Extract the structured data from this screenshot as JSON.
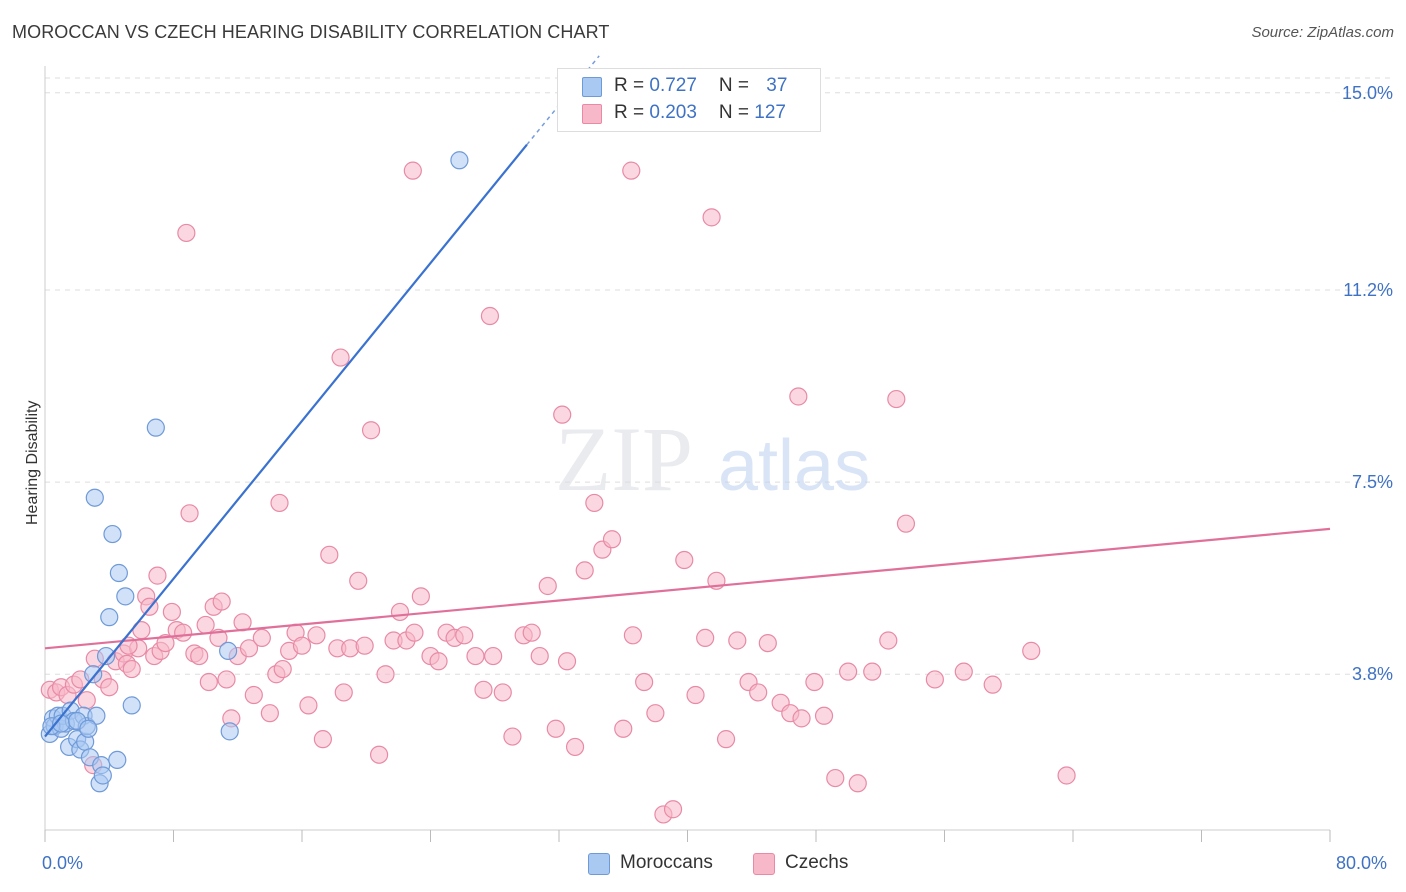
{
  "title": "MOROCCAN VS CZECH HEARING DISABILITY CORRELATION CHART",
  "source": "Source: ZipAtlas.com",
  "watermark": {
    "zip": "ZIP",
    "atlas": "atlas"
  },
  "legend_top": {
    "rows": [
      {
        "r_label": "R = ",
        "r_value": "0.727",
        "n_label": "N = ",
        "n_value": "37",
        "color": "#a9c8f2",
        "border": "#6f9ad8"
      },
      {
        "r_label": "R = ",
        "r_value": "0.203",
        "n_label": "N = ",
        "n_value": "127",
        "color": "#f7b8c9",
        "border": "#e88aa6"
      }
    ]
  },
  "legend_bottom": [
    {
      "label": "Moroccans",
      "color": "#a9c8f2",
      "border": "#6f9ad8"
    },
    {
      "label": "Czechs",
      "color": "#f7b8c9",
      "border": "#e88aa6"
    }
  ],
  "colors": {
    "blue_line": "#3a72d0",
    "pink_line": "#e0709a",
    "tick_label": "#3f72c4",
    "grid": "#dddddd"
  },
  "chart_data": {
    "type": "scatter",
    "title": "MOROCCAN VS CZECH HEARING DISABILITY CORRELATION CHART",
    "xlabel": "",
    "ylabel": "Hearing Disability",
    "xlim": [
      0,
      80
    ],
    "ylim": [
      0.8,
      15.4
    ],
    "x_tick_labels": [
      "0.0%",
      "80.0%"
    ],
    "y_ticks": [
      3.8,
      7.5,
      11.2,
      15.0
    ],
    "y_tick_labels": [
      "3.8%",
      "7.5%",
      "11.2%",
      "15.0%"
    ],
    "grid": true,
    "legend_position": "top-center",
    "series": [
      {
        "name": "Moroccans",
        "trend": {
          "x": [
            0,
            30
          ],
          "y": [
            2.6,
            14.0
          ]
        },
        "x": [
          0.3,
          0.5,
          0.6,
          0.8,
          1.0,
          1.1,
          1.3,
          1.5,
          1.6,
          1.8,
          2.0,
          2.2,
          2.4,
          2.5,
          2.6,
          2.8,
          3.0,
          3.2,
          3.4,
          3.5,
          3.6,
          3.8,
          4.0,
          4.2,
          4.5,
          4.6,
          5.0,
          5.4,
          6.9,
          11.4,
          11.5,
          25.8,
          0.4,
          1.0,
          2.0,
          2.7,
          3.1
        ],
        "y": [
          2.65,
          2.95,
          2.8,
          3.0,
          2.75,
          3.0,
          2.85,
          2.4,
          3.1,
          2.9,
          2.55,
          2.35,
          3.0,
          2.5,
          2.8,
          2.2,
          3.8,
          3.0,
          1.7,
          2.05,
          1.85,
          4.15,
          4.9,
          6.5,
          2.15,
          5.75,
          5.3,
          3.2,
          8.55,
          4.25,
          2.7,
          13.7,
          2.8,
          2.85,
          2.9,
          2.75,
          7.2
        ]
      },
      {
        "name": "Czechs",
        "trend": {
          "x": [
            0,
            80
          ],
          "y": [
            4.3,
            6.6
          ]
        },
        "x": [
          0.3,
          0.7,
          1.0,
          1.4,
          1.8,
          2.2,
          2.6,
          3.1,
          3.6,
          4.0,
          4.4,
          4.9,
          5.1,
          5.4,
          5.8,
          6.0,
          6.3,
          6.5,
          6.8,
          7.0,
          7.2,
          7.5,
          7.9,
          8.2,
          8.6,
          9.0,
          9.3,
          9.6,
          10.0,
          10.2,
          10.5,
          10.8,
          11.0,
          11.3,
          11.6,
          12.0,
          12.3,
          12.7,
          13.0,
          13.5,
          14.0,
          14.4,
          14.8,
          15.2,
          15.6,
          16.0,
          16.4,
          16.9,
          17.3,
          17.7,
          18.2,
          18.6,
          19.0,
          19.5,
          19.9,
          20.3,
          20.8,
          21.2,
          21.7,
          22.1,
          22.5,
          23.0,
          23.4,
          24.0,
          24.5,
          25.0,
          25.5,
          26.1,
          26.8,
          27.3,
          27.9,
          28.5,
          29.1,
          29.8,
          30.3,
          30.8,
          31.3,
          31.8,
          32.5,
          33.0,
          33.6,
          34.2,
          34.7,
          35.3,
          36.0,
          36.6,
          37.3,
          38.0,
          38.5,
          39.1,
          39.8,
          40.5,
          41.1,
          41.8,
          42.4,
          43.1,
          43.8,
          44.4,
          45.0,
          45.8,
          46.4,
          47.1,
          47.9,
          48.5,
          49.2,
          50.0,
          50.6,
          51.5,
          52.5,
          53.6,
          55.4,
          57.2,
          59.0,
          61.4,
          63.6,
          3.0,
          5.2,
          8.8,
          14.6,
          18.4,
          22.9,
          27.7,
          32.2,
          36.5,
          41.5,
          46.9,
          53.0
        ],
        "y": [
          3.5,
          3.45,
          3.55,
          3.4,
          3.6,
          3.7,
          3.3,
          4.1,
          3.7,
          3.55,
          4.05,
          4.2,
          4.0,
          3.9,
          4.3,
          4.65,
          5.3,
          5.1,
          4.15,
          5.7,
          4.25,
          4.4,
          5.0,
          4.65,
          4.6,
          6.9,
          4.2,
          4.15,
          4.75,
          3.65,
          5.1,
          4.5,
          5.2,
          3.7,
          2.95,
          4.15,
          4.8,
          4.3,
          3.4,
          4.5,
          3.05,
          3.8,
          3.9,
          4.25,
          4.6,
          4.35,
          3.2,
          4.55,
          2.55,
          6.1,
          4.3,
          3.45,
          4.3,
          5.6,
          4.35,
          8.5,
          2.25,
          3.8,
          4.45,
          5.0,
          4.45,
          4.6,
          5.3,
          4.15,
          4.05,
          4.6,
          4.5,
          4.55,
          4.15,
          3.5,
          4.15,
          3.45,
          2.6,
          4.55,
          4.6,
          4.15,
          5.5,
          2.75,
          4.05,
          2.4,
          5.8,
          7.1,
          6.2,
          6.4,
          2.75,
          4.55,
          3.65,
          3.05,
          1.1,
          1.2,
          6.0,
          3.4,
          4.5,
          5.6,
          2.55,
          4.45,
          3.65,
          3.45,
          4.4,
          3.25,
          3.05,
          2.95,
          3.65,
          3.0,
          1.8,
          3.85,
          1.7,
          3.85,
          4.45,
          6.7,
          3.7,
          3.85,
          3.6,
          4.25,
          1.85,
          2.05,
          4.35,
          12.3,
          7.1,
          9.9,
          13.5,
          10.7,
          8.8,
          13.5,
          12.6,
          9.15,
          9.1
        ]
      }
    ]
  }
}
